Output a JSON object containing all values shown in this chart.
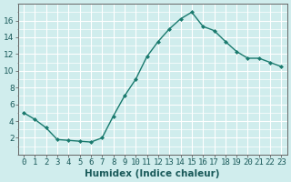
{
  "title": "",
  "xlabel": "Humidex (Indice chaleur)",
  "x": [
    0,
    1,
    2,
    3,
    4,
    5,
    6,
    7,
    8,
    9,
    10,
    11,
    12,
    13,
    14,
    15,
    16,
    17,
    18,
    19,
    20,
    21,
    22,
    23
  ],
  "y": [
    5.0,
    4.2,
    3.2,
    1.8,
    1.7,
    1.6,
    1.5,
    2.0,
    4.6,
    7.0,
    9.0,
    11.7,
    13.5,
    15.0,
    16.2,
    17.0,
    15.3,
    14.8,
    13.5,
    12.3,
    11.5,
    11.5,
    11.0,
    10.5
  ],
  "line_color": "#1a7a6e",
  "marker": "D",
  "marker_size": 2,
  "bg_color": "#d0eded",
  "grid_color": "#ffffff",
  "ylim": [
    0,
    18
  ],
  "xlim": [
    -0.5,
    23.5
  ],
  "yticks": [
    2,
    4,
    6,
    8,
    10,
    12,
    14,
    16
  ],
  "xticks": [
    0,
    1,
    2,
    3,
    4,
    5,
    6,
    7,
    8,
    9,
    10,
    11,
    12,
    13,
    14,
    15,
    16,
    17,
    18,
    19,
    20,
    21,
    22,
    23
  ],
  "tick_fontsize": 6.5,
  "xlabel_fontsize": 7.5
}
